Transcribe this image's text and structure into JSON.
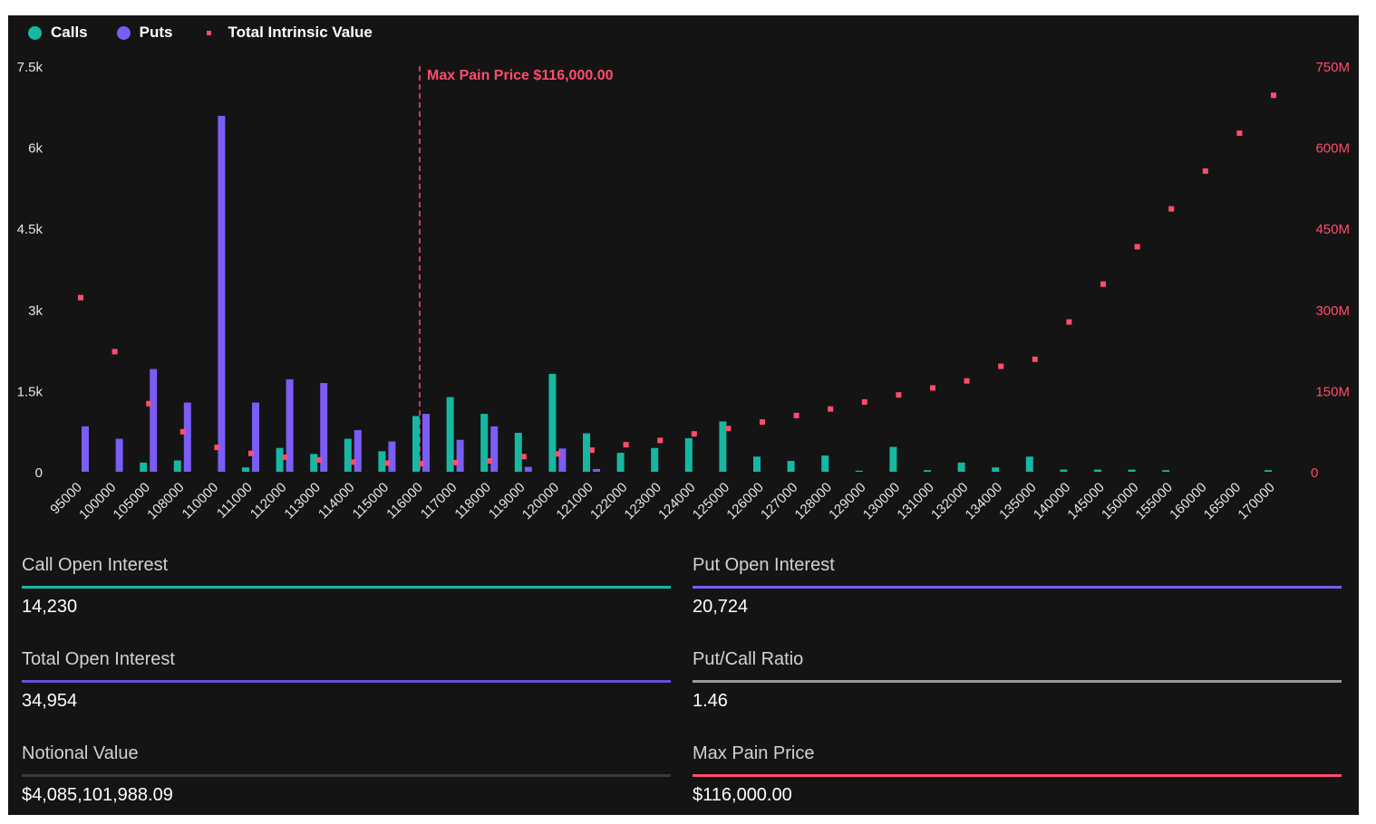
{
  "legend": {
    "calls": "Calls",
    "puts": "Puts",
    "total": "Total Intrinsic Value"
  },
  "colors": {
    "calls": "#16b8a2",
    "puts": "#7b5cf5",
    "total": "#ff4d6d",
    "background": "#141414",
    "right_axis": "#ff4d6d",
    "grey_line": "#9a9a9a",
    "dark_line": "#3a3a3a"
  },
  "chart_data": {
    "type": "bar",
    "annotation": "Max Pain Price $116,000.00",
    "max_pain_category": "116000",
    "left_axis": {
      "ticks": [
        "0",
        "1.5k",
        "3k",
        "4.5k",
        "6k",
        "7.5k"
      ],
      "ylim": [
        0,
        7500
      ]
    },
    "right_axis": {
      "ticks": [
        "0",
        "150M",
        "300M",
        "450M",
        "600M",
        "750M"
      ],
      "ylim": [
        0,
        750000000
      ]
    },
    "categories": [
      "95000",
      "100000",
      "105000",
      "108000",
      "110000",
      "111000",
      "112000",
      "113000",
      "114000",
      "115000",
      "116000",
      "117000",
      "118000",
      "119000",
      "120000",
      "121000",
      "122000",
      "123000",
      "124000",
      "125000",
      "126000",
      "127000",
      "128000",
      "129000",
      "130000",
      "131000",
      "132000",
      "134000",
      "135000",
      "140000",
      "145000",
      "150000",
      "155000",
      "160000",
      "165000",
      "170000"
    ],
    "series": [
      {
        "name": "Calls",
        "kind": "bar",
        "axis": "left",
        "values": [
          0,
          0,
          170,
          210,
          0,
          80,
          440,
          330,
          610,
          380,
          1030,
          1380,
          1070,
          720,
          1810,
          710,
          350,
          440,
          620,
          930,
          280,
          200,
          300,
          20,
          460,
          30,
          170,
          80,
          280,
          40,
          40,
          40,
          30,
          0,
          0,
          30
        ]
      },
      {
        "name": "Puts",
        "kind": "bar",
        "axis": "left",
        "values": [
          840,
          610,
          1900,
          1280,
          6580,
          1280,
          1710,
          1640,
          770,
          560,
          1070,
          590,
          840,
          90,
          430,
          50,
          0,
          0,
          0,
          0,
          0,
          0,
          0,
          0,
          0,
          0,
          0,
          0,
          0,
          0,
          0,
          0,
          0,
          0,
          0,
          0
        ]
      },
      {
        "name": "Total Intrinsic Value",
        "kind": "scatter",
        "axis": "right",
        "values": [
          322000000,
          222000000,
          126000000,
          74000000,
          45000000,
          34000000,
          27000000,
          22000000,
          18000000,
          16000000,
          15000000,
          17000000,
          20000000,
          28000000,
          33000000,
          40000000,
          50000000,
          58000000,
          70000000,
          80000000,
          92000000,
          104000000,
          116000000,
          129000000,
          142000000,
          155000000,
          168000000,
          195000000,
          208000000,
          277000000,
          347000000,
          416000000,
          486000000,
          556000000,
          626000000,
          696000000
        ]
      }
    ]
  },
  "stats": [
    {
      "label": "Call Open Interest",
      "value": "14,230",
      "line_color": "#16b8a2"
    },
    {
      "label": "Put Open Interest",
      "value": "20,724",
      "line_color": "#7b5cf5"
    },
    {
      "label": "Total Open Interest",
      "value": "34,954",
      "line_color": "#6a4fd8"
    },
    {
      "label": "Put/Call Ratio",
      "value": "1.46",
      "line_color": "#9a9a9a"
    },
    {
      "label": "Notional Value",
      "value": "$4,085,101,988.09",
      "line_color": "#3a3a3a"
    },
    {
      "label": "Max Pain Price",
      "value": "$116,000.00",
      "line_color": "#ff4d6d"
    }
  ]
}
